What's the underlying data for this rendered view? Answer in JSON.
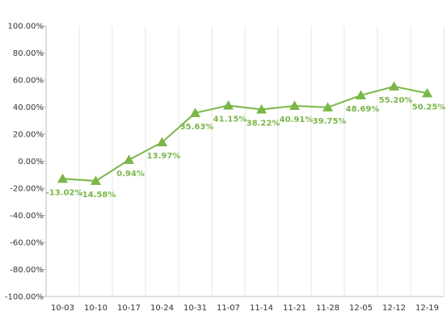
{
  "chart_data": {
    "type": "line",
    "title": "",
    "xlabel": "",
    "ylabel": "",
    "categories": [
      "10-03",
      "10-10",
      "10-17",
      "10-24",
      "10-31",
      "11-07",
      "11-14",
      "11-21",
      "11-28",
      "12-05",
      "12-12",
      "12-19"
    ],
    "series": [
      {
        "values": [
          -13.02,
          -14.58,
          0.94,
          13.97,
          35.63,
          41.15,
          38.22,
          40.91,
          39.75,
          48.69,
          55.2,
          50.25
        ],
        "labels": [
          "-13.02%",
          "-14.58%",
          "0.94%",
          "13.97%",
          "35.63%",
          "41.15%",
          "38.22%",
          "40.91%",
          "39.75%",
          "48.69%",
          "55.20%",
          "50.25%"
        ],
        "color": "#7ab648",
        "marker": "triangle"
      }
    ],
    "ylim": [
      -100,
      100
    ],
    "yticks": [
      100,
      80,
      60,
      40,
      20,
      0,
      -20,
      -40,
      -60,
      -80,
      -100
    ],
    "ytick_labels": [
      "100.00%",
      "80.00%",
      "60.00%",
      "40.00%",
      "20.00%",
      "0.00%",
      "-20.00%",
      "-40.00%",
      "-60.00%",
      "-80.00%",
      "-100.00%"
    ],
    "grid": "vertical",
    "legend": "none"
  }
}
